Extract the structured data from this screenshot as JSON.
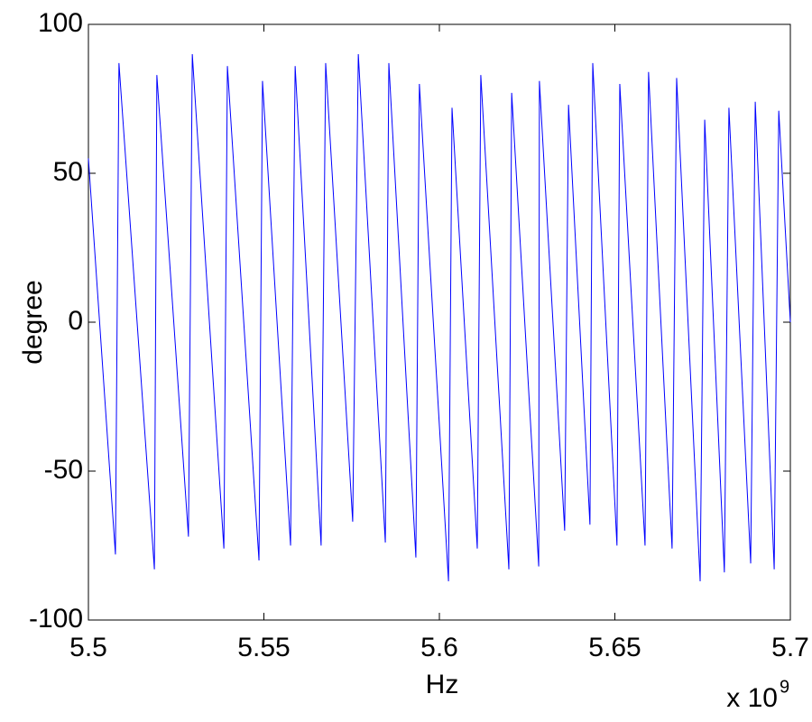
{
  "chart_data": {
    "type": "line",
    "xlabel": "Hz",
    "ylabel": "degree",
    "x_multiplier": "x 10",
    "x_multiplier_exponent": "9",
    "xlim": [
      5.5,
      5.7
    ],
    "xticks": [
      5.5,
      5.55,
      5.6,
      5.65,
      5.7
    ],
    "ylim": [
      -100,
      100
    ],
    "yticks": [
      -100,
      -50,
      0,
      50,
      100
    ],
    "x": [
      5.5,
      5.5077,
      5.5087,
      5.5188,
      5.5195,
      5.5285,
      5.5296,
      5.5386,
      5.5396,
      5.5486,
      5.5496,
      5.5576,
      5.5589,
      5.5663,
      5.5676,
      5.5753,
      5.5769,
      5.5846,
      5.5856,
      5.5933,
      5.5943,
      5.6026,
      5.6036,
      5.6108,
      5.6118,
      5.6198,
      5.6206,
      5.6283,
      5.6285,
      5.6357,
      5.6368,
      5.6429,
      5.6437,
      5.6506,
      5.6514,
      5.6586,
      5.6596,
      5.6663,
      5.6676,
      5.6743,
      5.6756,
      5.6812,
      5.6825,
      5.6887,
      5.69,
      5.6954,
      5.6967,
      5.7
    ],
    "series": [
      {
        "color": "#0000ff",
        "values": [
          55,
          -78,
          87,
          -83,
          83,
          -72,
          90,
          -76,
          86,
          -80,
          81,
          -75,
          86,
          -75,
          87,
          -67,
          90,
          -74,
          87,
          -79,
          80,
          -87,
          72,
          -76,
          83,
          -83,
          77,
          -82,
          81,
          -70,
          73,
          -68,
          87,
          -75,
          80,
          -75,
          84,
          -76,
          82,
          -87,
          68,
          -84,
          72,
          -81,
          74,
          -83,
          71,
          0
        ]
      }
    ]
  }
}
